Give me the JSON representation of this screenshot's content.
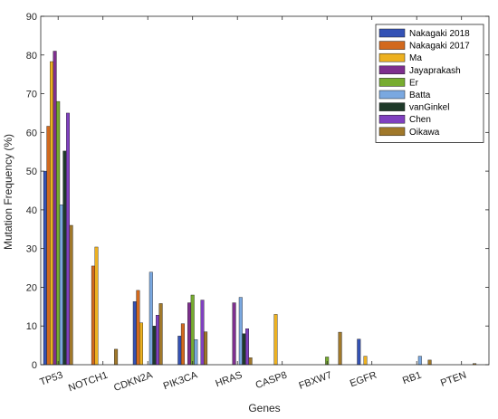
{
  "chart_data": {
    "type": "bar",
    "xlabel": "Genes",
    "ylabel": "Mutation Frequency (%)",
    "ylim": [
      0,
      90
    ],
    "yticks": [
      0,
      10,
      20,
      30,
      40,
      50,
      60,
      70,
      80,
      90
    ],
    "grid": false,
    "legend_position": "top-right",
    "categories": [
      "TP53",
      "NOTCH1",
      "CDKN2A",
      "PIK3CA",
      "HRAS",
      "CASP8",
      "FBXW7",
      "EGFR",
      "RB1",
      "PTEN"
    ],
    "series": [
      {
        "name": "Nakagaki 2018",
        "color": "#3452b5",
        "values": [
          50,
          null,
          16.3,
          7.4,
          null,
          null,
          null,
          6.6,
          null,
          null
        ]
      },
      {
        "name": "Nakagaki 2017",
        "color": "#d2691e",
        "values": [
          61.6,
          25.5,
          19.2,
          10.6,
          null,
          null,
          null,
          null,
          null,
          null
        ]
      },
      {
        "name": "Ma",
        "color": "#edb120",
        "values": [
          78.3,
          30.4,
          10.8,
          null,
          null,
          13,
          null,
          2.2,
          null,
          null
        ]
      },
      {
        "name": "Jayaprakash",
        "color": "#7e2f8e",
        "values": [
          81,
          null,
          null,
          16,
          16,
          null,
          null,
          null,
          null,
          null
        ]
      },
      {
        "name": "Er",
        "color": "#77ac30",
        "values": [
          68,
          null,
          null,
          18,
          null,
          null,
          2,
          null,
          null,
          null
        ]
      },
      {
        "name": "Batta",
        "color": "#7aa8e0",
        "values": [
          41.3,
          null,
          23.9,
          6.5,
          17.4,
          null,
          null,
          null,
          2.2,
          null
        ]
      },
      {
        "name": "vanGinkel",
        "color": "#1f3a2a",
        "values": [
          55.2,
          null,
          10,
          null,
          8,
          null,
          null,
          null,
          null,
          null
        ]
      },
      {
        "name": "Chen",
        "color": "#8040c0",
        "values": [
          65,
          null,
          12.8,
          16.7,
          9.3,
          null,
          null,
          null,
          null,
          null
        ]
      },
      {
        "name": "Oikawa",
        "color": "#a0782a",
        "values": [
          36,
          4,
          15.8,
          8.5,
          1.8,
          null,
          8.4,
          null,
          1.2,
          0.3
        ]
      }
    ]
  }
}
